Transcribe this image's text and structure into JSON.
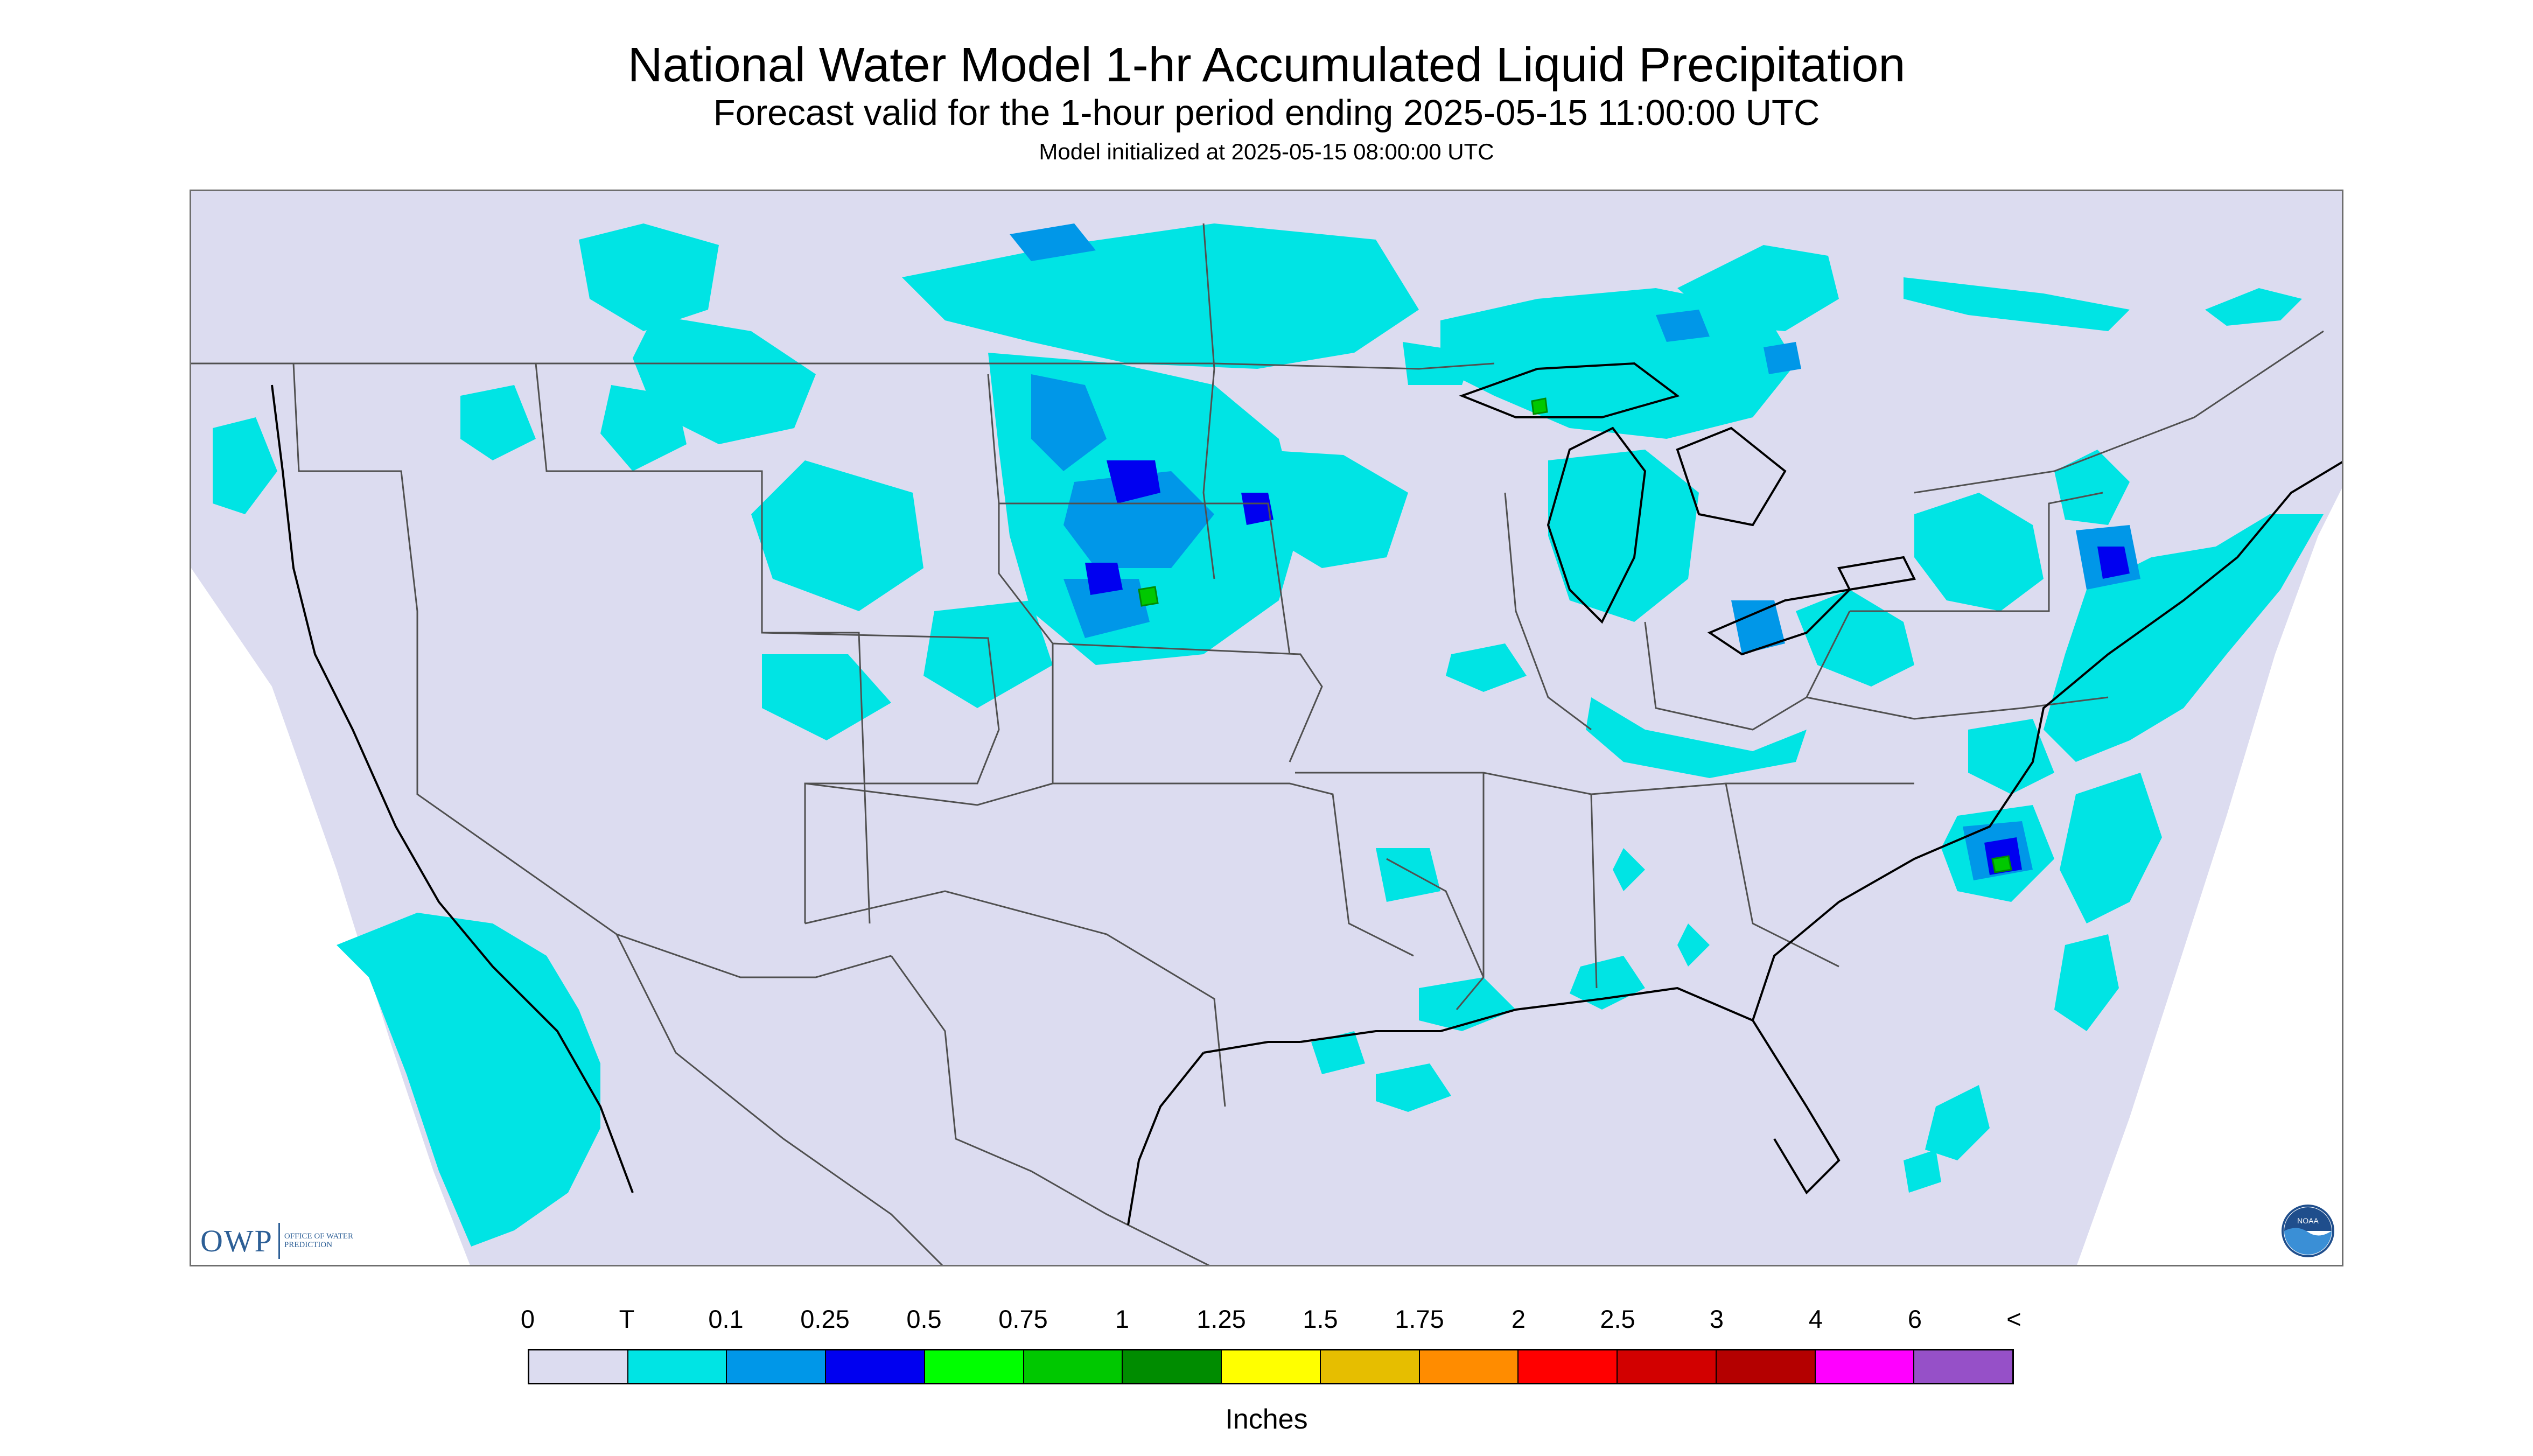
{
  "title": "National Water Model 1-hr Accumulated Liquid Precipitation",
  "subtitle": "Forecast valid for the 1-hour period ending 2025-05-15 11:00:00 UTC",
  "init_line": "Model initialized at 2025-05-15 08:00:00 UTC",
  "logos": {
    "owp_text": "OWP",
    "owp_sub": "Office of Water Prediction",
    "noaa_text": "NOAA"
  },
  "legend": {
    "unit": "Inches",
    "labels": [
      "0",
      "T",
      "0.1",
      "0.25",
      "0.5",
      "0.75",
      "1",
      "1.25",
      "1.5",
      "1.75",
      "2",
      "2.5",
      "3",
      "4",
      "6",
      "<"
    ],
    "colors": [
      "#dcdcf0",
      "#00e4e4",
      "#0097e8",
      "#0000f0",
      "#00ff00",
      "#00c800",
      "#008c00",
      "#ffff00",
      "#e6be00",
      "#ff8c00",
      "#ff0000",
      "#d20000",
      "#b40000",
      "#ff00ff",
      "#9650c8"
    ]
  },
  "map": {
    "domain_color": "#dcdcf0",
    "outside_color": "#ffffff",
    "boundary_color": "#505050",
    "coast_color": "#000000",
    "trace_color": "#00e4e4",
    "light_color": "#0097e8",
    "heavy_color": "#0000f0",
    "peak_color": "#00c800",
    "peak2_color": "#008c00"
  }
}
